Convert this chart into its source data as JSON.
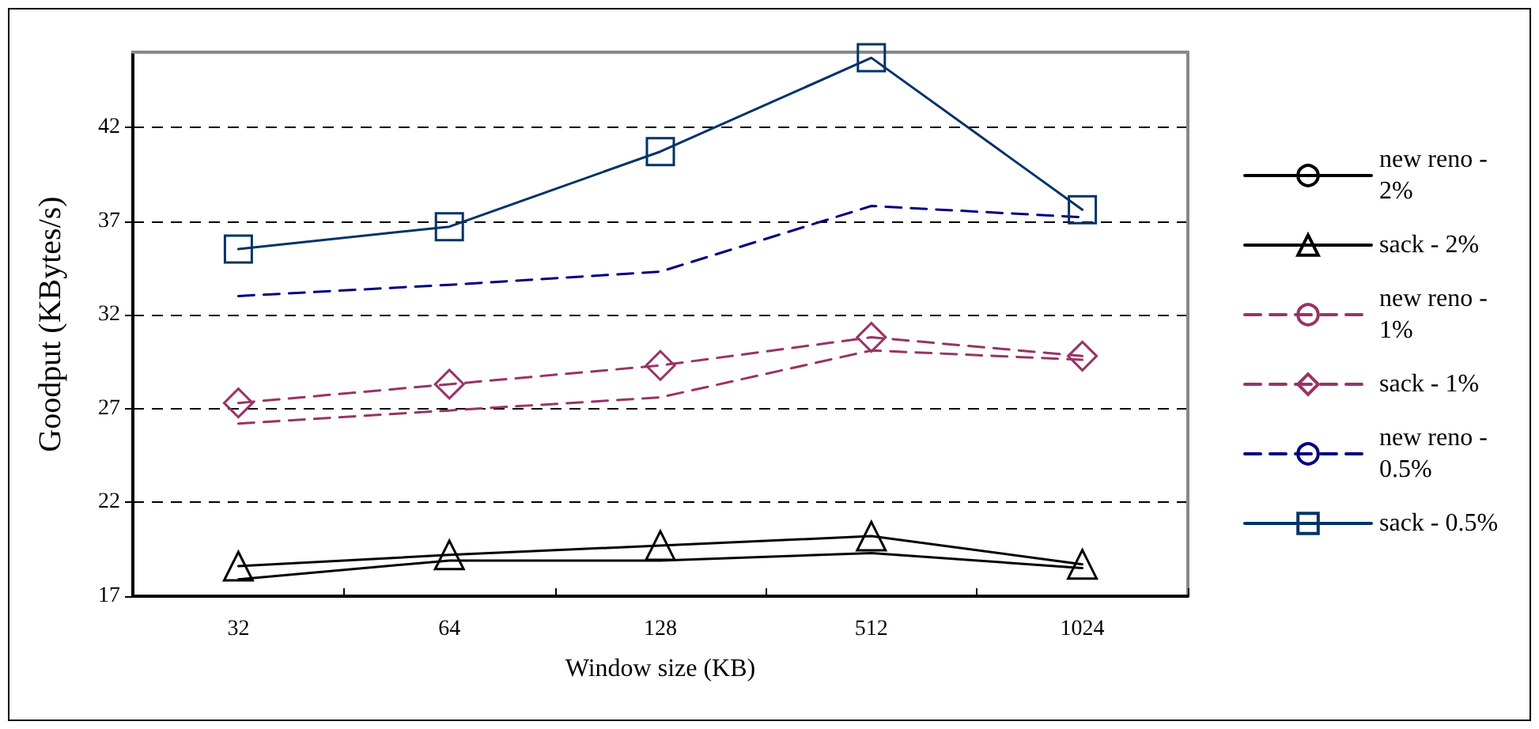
{
  "chart_data": {
    "type": "line",
    "xlabel": "Window size (KB)",
    "ylabel": "Goodput (KBytes/s)",
    "categories": [
      "32",
      "64",
      "128",
      "512",
      "1024"
    ],
    "ylim": [
      17,
      46
    ],
    "yticks": [
      17,
      22,
      27,
      32,
      37,
      42
    ],
    "grid": "y",
    "legend": "right",
    "series": [
      {
        "name": "new reno - 2%",
        "color": "#000000",
        "marker": "none",
        "line_style": "solid",
        "values": [
          17.9,
          18.9,
          18.9,
          19.3,
          18.5
        ]
      },
      {
        "name": "sack - 2%",
        "color": "#000000",
        "marker": "triangle",
        "line_style": "solid",
        "values": [
          18.6,
          19.2,
          19.7,
          20.2,
          18.7
        ]
      },
      {
        "name": "new reno - 1%",
        "color": "#993366",
        "marker": "none",
        "line_style": "dashed",
        "values": [
          26.2,
          26.9,
          27.6,
          30.1,
          29.6
        ]
      },
      {
        "name": "sack - 1%",
        "color": "#993366",
        "marker": "diamond",
        "line_style": "dashed",
        "values": [
          27.3,
          28.3,
          29.3,
          30.8,
          29.8
        ]
      },
      {
        "name": "new reno - 0.5%",
        "color": "#000080",
        "marker": "none",
        "line_style": "dashed",
        "values": [
          33.0,
          33.6,
          34.3,
          37.8,
          37.2
        ]
      },
      {
        "name": "sack - 0.5%",
        "color": "#003366",
        "marker": "square",
        "line_style": "solid",
        "values": [
          35.5,
          36.7,
          40.7,
          45.7,
          37.6
        ]
      }
    ]
  }
}
